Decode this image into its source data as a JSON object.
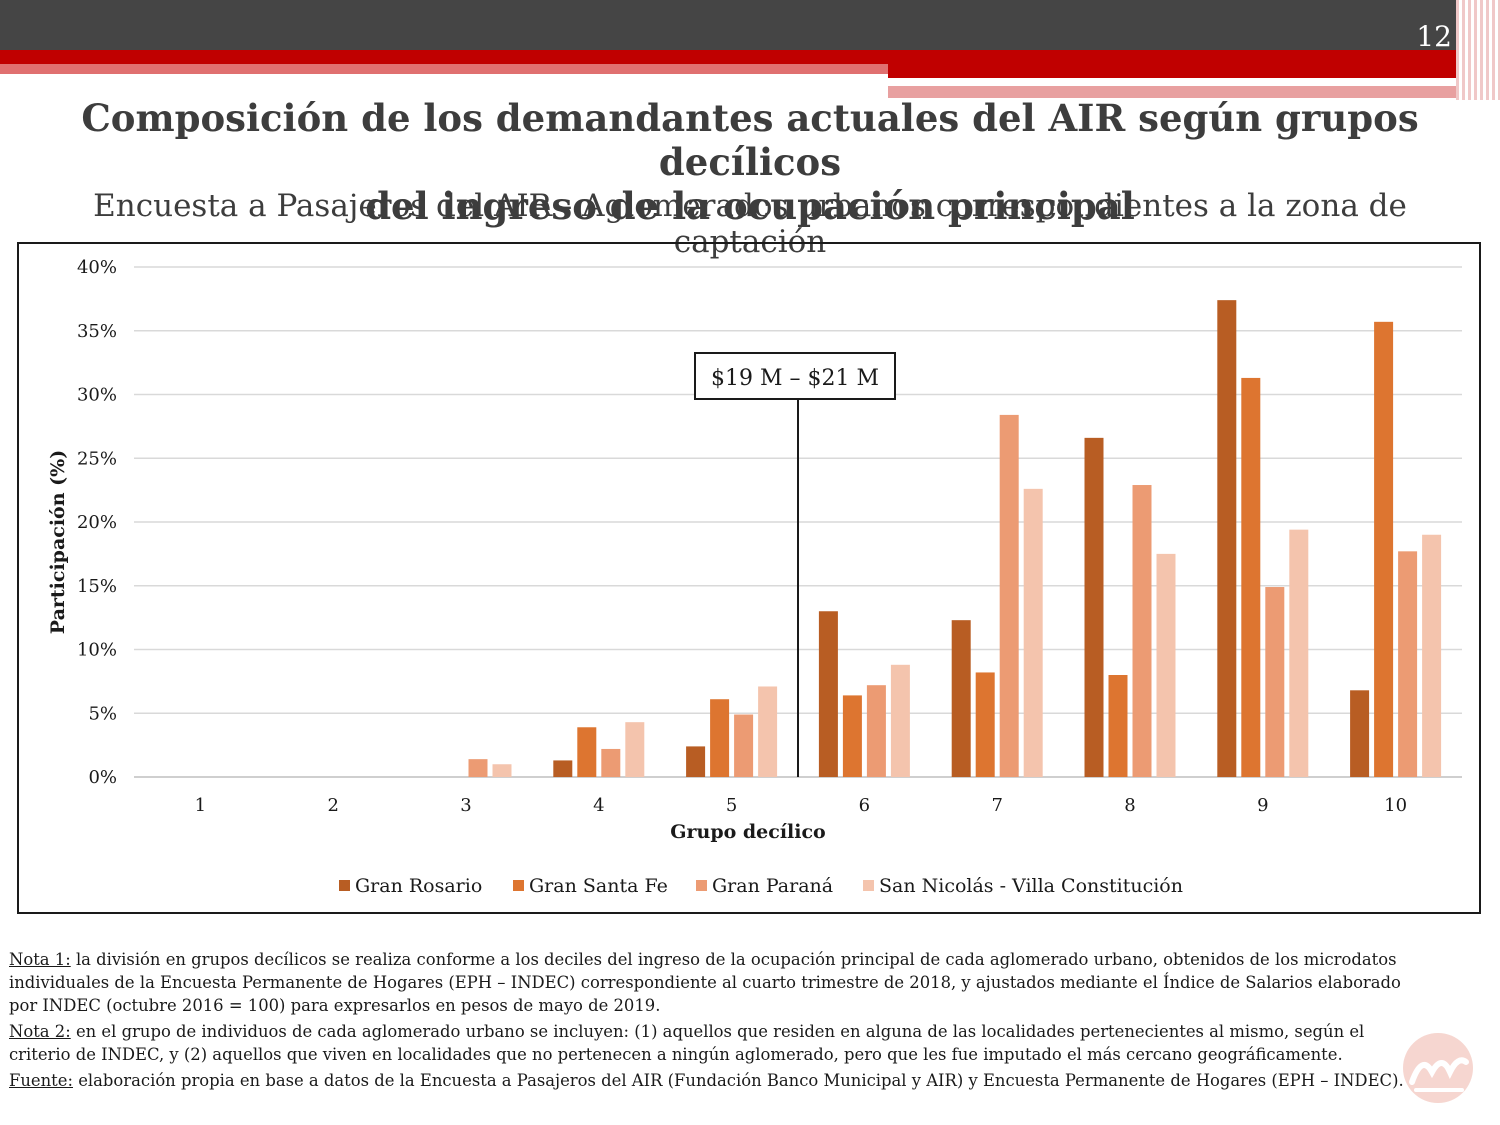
{
  "slide": {
    "page_number": "12",
    "title_line1": "Composición de los demandantes actuales del AIR según grupos decílicos",
    "title_line2": "del ingreso de la ocupación principal",
    "subtitle": "Encuesta a Pasajeros del AIR - Aglomerados urbanos correspondientes a la zona de captación"
  },
  "chart_data": {
    "type": "bar",
    "title": "",
    "xlabel": "Grupo decílico",
    "ylabel": "Participación (%)",
    "categories": [
      "1",
      "2",
      "3",
      "4",
      "5",
      "6",
      "7",
      "8",
      "9",
      "10"
    ],
    "ylim": [
      0,
      40
    ],
    "yticks": [
      "0%",
      "5%",
      "10%",
      "15%",
      "20%",
      "25%",
      "30%",
      "35%",
      "40%"
    ],
    "grid": true,
    "legend_position": "bottom",
    "annotation": {
      "text": "$19 M – $21 M",
      "between_categories": [
        "5",
        "6"
      ]
    },
    "series": [
      {
        "name": "Gran Rosario",
        "color": "#b85d23",
        "values": [
          0,
          0,
          0,
          1.3,
          2.4,
          13.0,
          12.3,
          26.6,
          37.4,
          6.8
        ]
      },
      {
        "name": "Gran Santa Fe",
        "color": "#dd7530",
        "values": [
          0,
          0,
          0,
          3.9,
          6.1,
          6.4,
          8.2,
          8.0,
          31.3,
          35.7
        ]
      },
      {
        "name": "Gran Paraná",
        "color": "#ec9b73",
        "values": [
          0,
          0,
          1.4,
          2.2,
          4.9,
          7.2,
          28.4,
          22.9,
          14.9,
          17.7
        ]
      },
      {
        "name": "San Nicolás - Villa Constitución",
        "color": "#f4c4ad",
        "values": [
          0,
          0,
          1.0,
          4.3,
          7.1,
          8.8,
          22.6,
          17.5,
          19.4,
          19.0
        ]
      }
    ]
  },
  "notes": [
    {
      "label": "Nota 1:",
      "text": " la división en grupos decílicos se realiza conforme a los deciles del ingreso de la ocupación principal de cada aglomerado urbano, obtenidos de los microdatos individuales de la Encuesta Permanente de Hogares (EPH – INDEC) correspondiente al cuarto trimestre de 2018, y ajustados mediante el Índice de Salarios elaborado por INDEC (octubre 2016 = 100) para expresarlos en pesos de mayo de 2019."
    },
    {
      "label": "Nota 2:",
      "text": " en el grupo de individuos de cada aglomerado urbano se incluyen: (1) aquellos que residen en alguna de las localidades pertenecientes al mismo, según el criterio de INDEC, y (2) aquellos que viven en localidades que no pertenecen a ningún aglomerado, pero que les fue imputado el más cercano geográficamente."
    },
    {
      "label": "Fuente:",
      "text": " elaboración propia en base a datos de la  Encuesta a Pasajeros del AIR (Fundación Banco Municipal y AIR) y Encuesta Permanente de Hogares (EPH – INDEC)."
    }
  ]
}
